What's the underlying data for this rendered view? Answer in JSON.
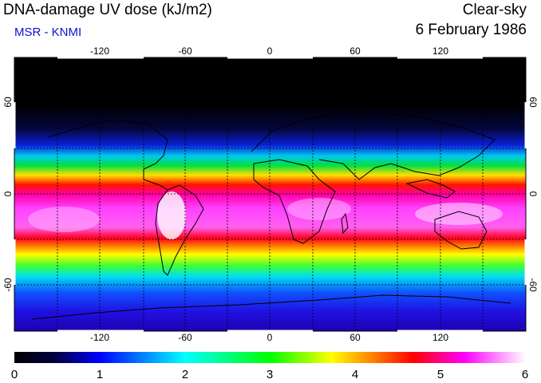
{
  "header": {
    "title": "DNA-damage UV dose (kJ/m2)",
    "subtitle": "MSR - KNMI",
    "condition": "Clear-sky",
    "date": "6 February 1986"
  },
  "map": {
    "projection": "equirectangular",
    "lon_range": [
      -180,
      180
    ],
    "lat_range": [
      -90,
      90
    ],
    "lon_ticks": [
      "-120",
      "-60",
      "0",
      "60",
      "120"
    ],
    "lat_ticks": [
      "60",
      "0",
      "-60"
    ],
    "grid": "dashed 30 degree graticule"
  },
  "colorbar": {
    "min": 0,
    "max": 6,
    "labels": [
      "0",
      "1",
      "2",
      "3",
      "4",
      "5",
      "6"
    ],
    "colors": [
      "#000000",
      "#0000ff",
      "#00ffff",
      "#00ff00",
      "#ffff00",
      "#ff0000",
      "#ff00ff",
      "#ffffff"
    ]
  }
}
